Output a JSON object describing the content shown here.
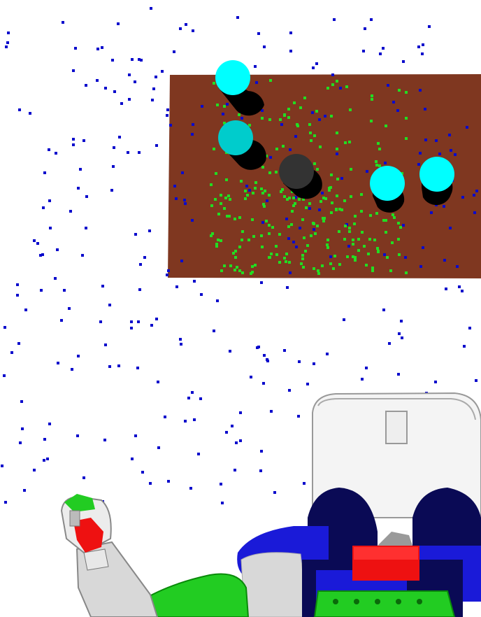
{
  "scene": {
    "background_color": "#ffffff",
    "table_color": "#7f3720",
    "free_point_color": "#0a0acc",
    "table_point_color": "#22dd22",
    "cylinder_cyan_color": "#00ffff",
    "cylinder_teal_color": "#00cccc",
    "cylinder_dark_color": "#333333",
    "robot_white_color": "#f4f4f4",
    "robot_blue_color": "#1a1ad8",
    "robot_navy_color": "#0a0a55",
    "robot_red_color": "#ee1111",
    "robot_green_color": "#22cc22"
  }
}
